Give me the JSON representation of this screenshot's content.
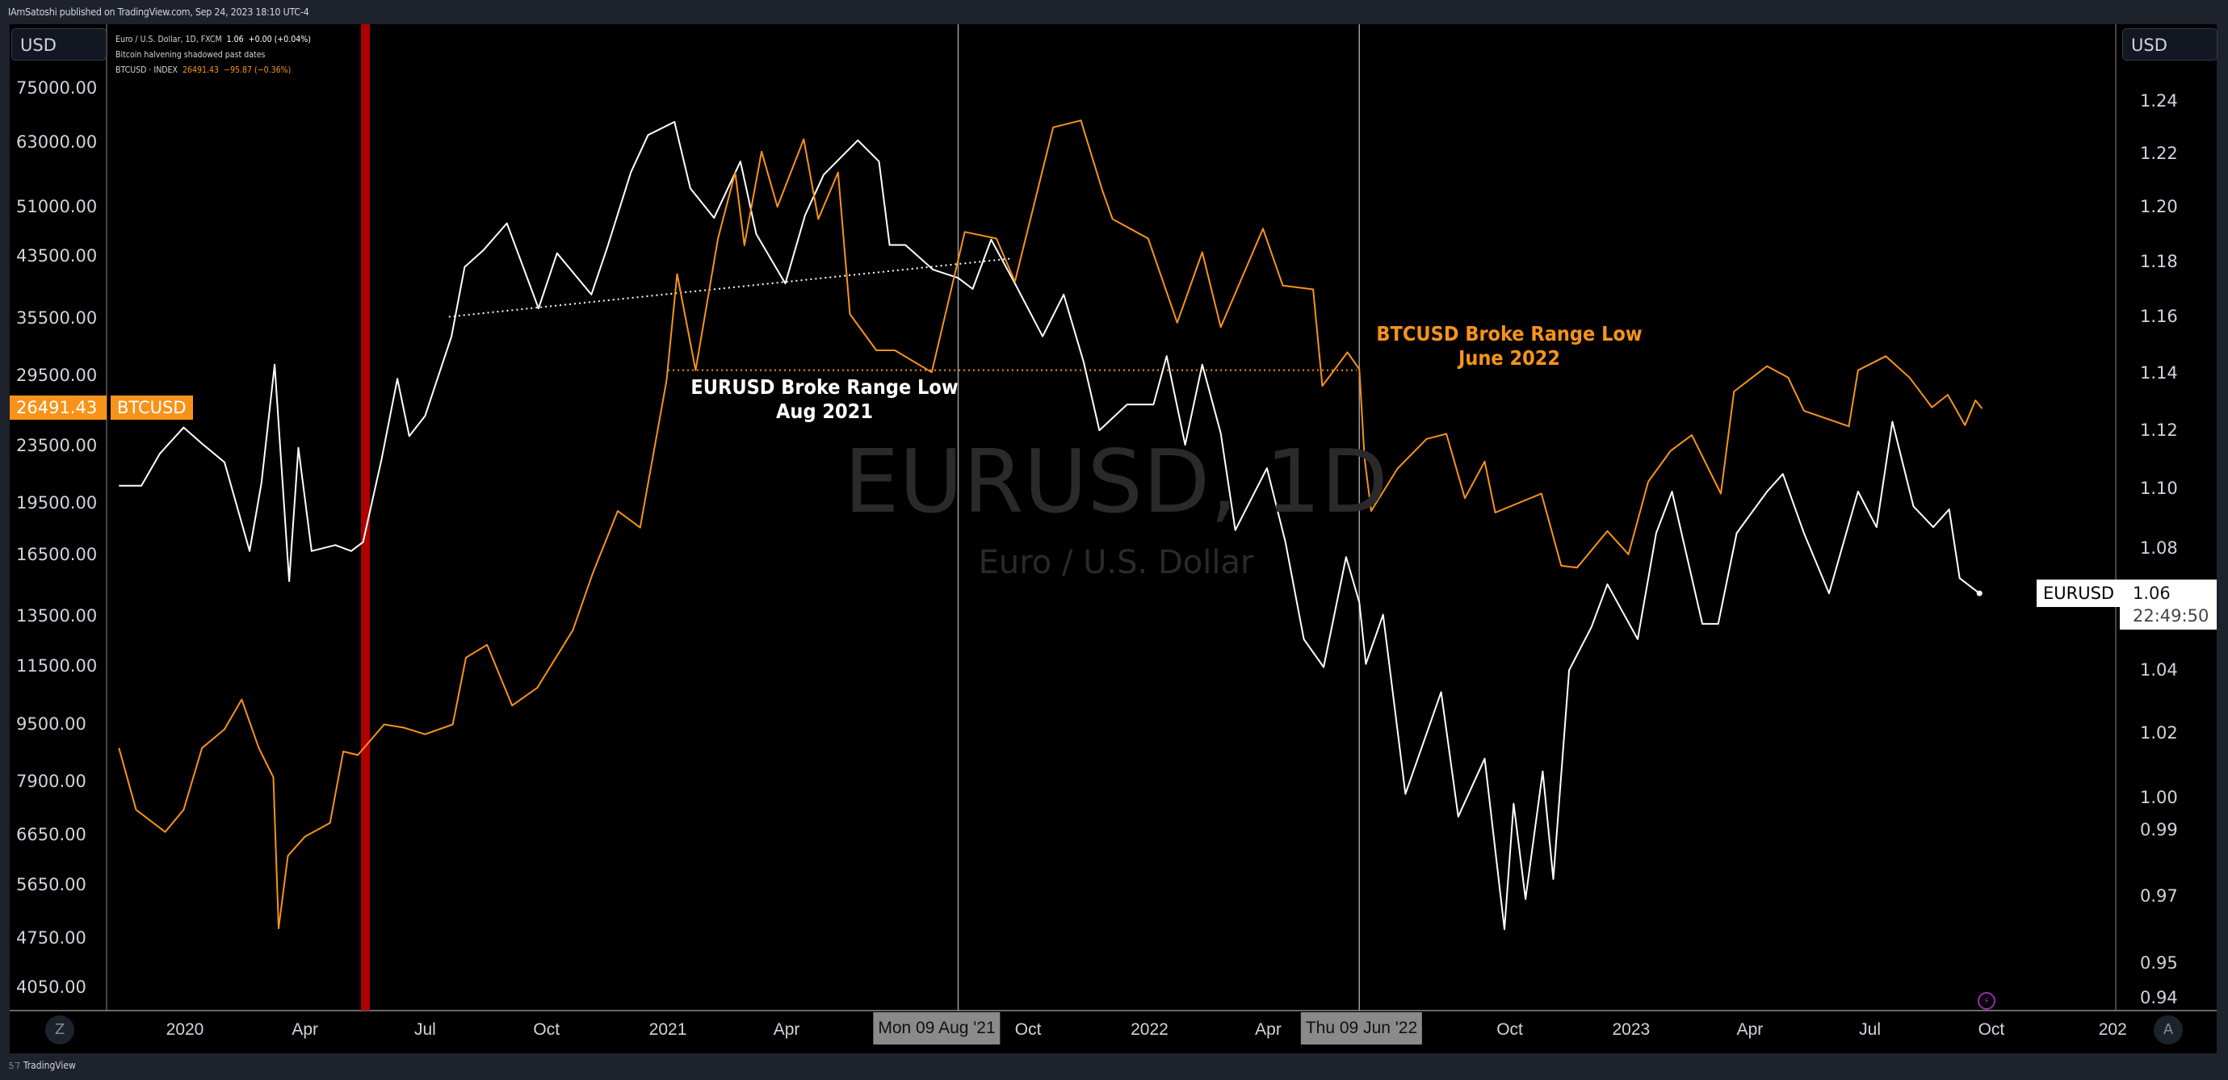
{
  "header": {
    "published": "IAmSatoshi published on TradingView.com, Sep 24, 2023 18:10 UTC-4"
  },
  "legend": {
    "main_title": "Euro / U.S. Dollar, 1D, FXCM",
    "main_price": "1.06",
    "main_change": "+0.00 (+0.04%)",
    "note_line": "Bitcoin halvening shadowed past dates",
    "btc_title": "BTCUSD · INDEX",
    "btc_price": "26491.43",
    "btc_change": "−95.87 (−0.36%)"
  },
  "currency_left": "USD",
  "currency_right": "USD",
  "watermark": {
    "symbol": "EURUSD, 1D",
    "description": "Euro / U.S. Dollar"
  },
  "annotations": {
    "eurusd": {
      "line1": "EURUSD Broke Range Low",
      "line2": "Aug 2021"
    },
    "btcusd": {
      "line1": "BTCUSD Broke Range Low",
      "line2": "June 2022"
    }
  },
  "price_tags": {
    "btc_price": "26491.43",
    "btc_name": "BTCUSD",
    "eur_name": "EURUSD",
    "eur_price": "1.06",
    "eur_countdown": "22:49:50"
  },
  "crosshair_labels": [
    "Mon 09 Aug '21",
    "Thu 09 Jun '22"
  ],
  "buttons": {
    "zoom": "Z",
    "auto": "A"
  },
  "footer": {
    "brand": "TradingView"
  },
  "colors": {
    "eurusd": "#ffffff",
    "btcusd": "#f7931a",
    "halving": "#b00000",
    "background": "#000000"
  },
  "icons": {
    "lightning": "lightning-icon",
    "logo": "tradingview-logo-icon"
  },
  "chart_data": {
    "type": "line",
    "x_axis": {
      "type": "date",
      "range": [
        "2019-11-08",
        "2024-01-20"
      ],
      "ticks": [
        [
          "2020-01-01",
          "2020"
        ],
        [
          "2020-04-01",
          "Apr"
        ],
        [
          "2020-07-01",
          "Jul"
        ],
        [
          "2020-10-01",
          "Oct"
        ],
        [
          "2021-01-01",
          "2021"
        ],
        [
          "2021-04-01",
          "Apr"
        ],
        [
          "2021-10-01",
          "Oct"
        ],
        [
          "2022-01-01",
          "2022"
        ],
        [
          "2022-04-01",
          "Apr"
        ],
        [
          "2022-10-01",
          "Oct"
        ],
        [
          "2023-01-01",
          "2023"
        ],
        [
          "2023-04-01",
          "Apr"
        ],
        [
          "2023-07-01",
          "Jul"
        ],
        [
          "2023-10-01",
          "Oct"
        ],
        [
          "2024-01-01",
          "202"
        ]
      ]
    },
    "left_axis": {
      "scale": "log",
      "range": [
        4050,
        75000
      ],
      "ticks": [
        "75000.00",
        "63000.00",
        "51000.00",
        "43500.00",
        "35500.00",
        "29500.00",
        "23500.00",
        "19500.00",
        "16500.00",
        "13500.00",
        "11500.00",
        "9500.00",
        "7900.00",
        "6650.00",
        "5650.00",
        "4750.00",
        "4050.00"
      ]
    },
    "right_axis": {
      "scale": "log",
      "range": [
        0.94,
        1.24
      ],
      "ticks": [
        "1.24",
        "1.22",
        "1.20",
        "1.18",
        "1.16",
        "1.14",
        "1.12",
        "1.10",
        "1.08",
        "1.04",
        "1.02",
        "1.00",
        "0.99",
        "0.97",
        "0.95",
        "0.94"
      ]
    },
    "grid": false,
    "series": [
      {
        "name": "EURUSD",
        "axis": "right",
        "color": "#ffffff",
        "points": [
          [
            "2019-11-12",
            1.101
          ],
          [
            "2019-11-29",
            1.101
          ],
          [
            "2019-12-13",
            1.112
          ],
          [
            "2019-12-31",
            1.121
          ],
          [
            "2020-01-15",
            1.115
          ],
          [
            "2020-01-31",
            1.109
          ],
          [
            "2020-02-19",
            1.079
          ],
          [
            "2020-02-28",
            1.102
          ],
          [
            "2020-03-09",
            1.143
          ],
          [
            "2020-03-20",
            1.069
          ],
          [
            "2020-03-27",
            1.114
          ],
          [
            "2020-04-06",
            1.079
          ],
          [
            "2020-04-24",
            1.081
          ],
          [
            "2020-05-06",
            1.079
          ],
          [
            "2020-05-15",
            1.082
          ],
          [
            "2020-05-29",
            1.11
          ],
          [
            "2020-06-10",
            1.138
          ],
          [
            "2020-06-19",
            1.118
          ],
          [
            "2020-07-01",
            1.125
          ],
          [
            "2020-07-21",
            1.153
          ],
          [
            "2020-07-31",
            1.178
          ],
          [
            "2020-08-14",
            1.184
          ],
          [
            "2020-09-01",
            1.194
          ],
          [
            "2020-09-25",
            1.163
          ],
          [
            "2020-10-09",
            1.183
          ],
          [
            "2020-11-04",
            1.168
          ],
          [
            "2020-11-16",
            1.185
          ],
          [
            "2020-12-04",
            1.213
          ],
          [
            "2020-12-17",
            1.227
          ],
          [
            "2021-01-06",
            1.232
          ],
          [
            "2021-01-18",
            1.207
          ],
          [
            "2021-02-05",
            1.196
          ],
          [
            "2021-02-25",
            1.217
          ],
          [
            "2021-03-09",
            1.19
          ],
          [
            "2021-03-31",
            1.172
          ],
          [
            "2021-04-15",
            1.197
          ],
          [
            "2021-04-29",
            1.212
          ],
          [
            "2021-05-25",
            1.225
          ],
          [
            "2021-06-10",
            1.217
          ],
          [
            "2021-06-18",
            1.186
          ],
          [
            "2021-06-30",
            1.186
          ],
          [
            "2021-07-21",
            1.177
          ],
          [
            "2021-08-09",
            1.174
          ],
          [
            "2021-08-20",
            1.17
          ],
          [
            "2021-09-03",
            1.188
          ],
          [
            "2021-09-21",
            1.172
          ],
          [
            "2021-10-12",
            1.153
          ],
          [
            "2021-10-28",
            1.168
          ],
          [
            "2021-11-12",
            1.144
          ],
          [
            "2021-11-24",
            1.12
          ],
          [
            "2021-12-15",
            1.129
          ],
          [
            "2022-01-04",
            1.129
          ],
          [
            "2022-01-14",
            1.146
          ],
          [
            "2022-01-28",
            1.115
          ],
          [
            "2022-02-10",
            1.143
          ],
          [
            "2022-02-24",
            1.119
          ],
          [
            "2022-03-07",
            1.086
          ],
          [
            "2022-03-31",
            1.107
          ],
          [
            "2022-04-14",
            1.082
          ],
          [
            "2022-04-28",
            1.05
          ],
          [
            "2022-05-13",
            1.041
          ],
          [
            "2022-05-30",
            1.077
          ],
          [
            "2022-06-09",
            1.062
          ],
          [
            "2022-06-14",
            1.042
          ],
          [
            "2022-06-27",
            1.058
          ],
          [
            "2022-07-14",
            1.001
          ],
          [
            "2022-08-10",
            1.033
          ],
          [
            "2022-08-23",
            0.994
          ],
          [
            "2022-09-12",
            1.012
          ],
          [
            "2022-09-27",
            0.96
          ],
          [
            "2022-10-04",
            0.998
          ],
          [
            "2022-10-13",
            0.969
          ],
          [
            "2022-10-26",
            1.008
          ],
          [
            "2022-11-03",
            0.975
          ],
          [
            "2022-11-15",
            1.04
          ],
          [
            "2022-12-02",
            1.054
          ],
          [
            "2022-12-14",
            1.068
          ],
          [
            "2023-01-06",
            1.05
          ],
          [
            "2023-01-20",
            1.085
          ],
          [
            "2023-02-01",
            1.099
          ],
          [
            "2023-02-24",
            1.055
          ],
          [
            "2023-03-08",
            1.055
          ],
          [
            "2023-03-22",
            1.085
          ],
          [
            "2023-04-14",
            1.099
          ],
          [
            "2023-04-26",
            1.105
          ],
          [
            "2023-05-12",
            1.085
          ],
          [
            "2023-05-31",
            1.065
          ],
          [
            "2023-06-22",
            1.099
          ],
          [
            "2023-07-06",
            1.087
          ],
          [
            "2023-07-18",
            1.123
          ],
          [
            "2023-08-03",
            1.094
          ],
          [
            "2023-08-18",
            1.087
          ],
          [
            "2023-08-30",
            1.093
          ],
          [
            "2023-09-07",
            1.07
          ],
          [
            "2023-09-22",
            1.065
          ]
        ]
      },
      {
        "name": "BTCUSD",
        "axis": "left",
        "color": "#f7931a",
        "points": [
          [
            "2019-11-12",
            8800
          ],
          [
            "2019-11-25",
            7200
          ],
          [
            "2019-12-17",
            6700
          ],
          [
            "2019-12-31",
            7200
          ],
          [
            "2020-01-14",
            8800
          ],
          [
            "2020-01-31",
            9350
          ],
          [
            "2020-02-13",
            10300
          ],
          [
            "2020-02-26",
            8800
          ],
          [
            "2020-03-08",
            8000
          ],
          [
            "2020-03-12",
            4900
          ],
          [
            "2020-03-19",
            6200
          ],
          [
            "2020-04-01",
            6600
          ],
          [
            "2020-04-20",
            6900
          ],
          [
            "2020-04-30",
            8700
          ],
          [
            "2020-05-11",
            8600
          ],
          [
            "2020-05-31",
            9500
          ],
          [
            "2020-06-15",
            9400
          ],
          [
            "2020-07-01",
            9200
          ],
          [
            "2020-07-22",
            9500
          ],
          [
            "2020-08-01",
            11800
          ],
          [
            "2020-08-17",
            12300
          ],
          [
            "2020-09-05",
            10100
          ],
          [
            "2020-09-24",
            10700
          ],
          [
            "2020-10-21",
            12900
          ],
          [
            "2020-11-05",
            15500
          ],
          [
            "2020-11-24",
            19000
          ],
          [
            "2020-12-11",
            18000
          ],
          [
            "2020-12-31",
            29000
          ],
          [
            "2021-01-08",
            41000
          ],
          [
            "2021-01-22",
            30000
          ],
          [
            "2021-02-08",
            46000
          ],
          [
            "2021-02-21",
            57000
          ],
          [
            "2021-02-28",
            45000
          ],
          [
            "2021-03-13",
            61000
          ],
          [
            "2021-03-25",
            51000
          ],
          [
            "2021-04-14",
            63500
          ],
          [
            "2021-04-25",
            49000
          ],
          [
            "2021-05-10",
            57000
          ],
          [
            "2021-05-19",
            36000
          ],
          [
            "2021-06-08",
            32000
          ],
          [
            "2021-06-22",
            32000
          ],
          [
            "2021-07-20",
            29800
          ],
          [
            "2021-08-14",
            47000
          ],
          [
            "2021-09-07",
            46000
          ],
          [
            "2021-09-21",
            40000
          ],
          [
            "2021-10-20",
            66000
          ],
          [
            "2021-11-10",
            67500
          ],
          [
            "2021-11-26",
            54000
          ],
          [
            "2021-12-04",
            49000
          ],
          [
            "2021-12-31",
            46000
          ],
          [
            "2022-01-22",
            35000
          ],
          [
            "2022-02-10",
            44000
          ],
          [
            "2022-02-24",
            34500
          ],
          [
            "2022-03-28",
            47500
          ],
          [
            "2022-04-12",
            39500
          ],
          [
            "2022-05-05",
            39000
          ],
          [
            "2022-05-12",
            28500
          ],
          [
            "2022-05-31",
            31800
          ],
          [
            "2022-06-09",
            30100
          ],
          [
            "2022-06-13",
            22500
          ],
          [
            "2022-06-18",
            19000
          ],
          [
            "2022-07-08",
            21800
          ],
          [
            "2022-07-30",
            24000
          ],
          [
            "2022-08-14",
            24400
          ],
          [
            "2022-08-28",
            19800
          ],
          [
            "2022-09-12",
            22300
          ],
          [
            "2022-09-20",
            18900
          ],
          [
            "2022-10-25",
            20100
          ],
          [
            "2022-11-09",
            15900
          ],
          [
            "2022-11-21",
            15800
          ],
          [
            "2022-12-14",
            17800
          ],
          [
            "2022-12-30",
            16500
          ],
          [
            "2023-01-14",
            20900
          ],
          [
            "2023-01-31",
            23100
          ],
          [
            "2023-02-16",
            24300
          ],
          [
            "2023-03-10",
            20100
          ],
          [
            "2023-03-20",
            28000
          ],
          [
            "2023-04-14",
            30400
          ],
          [
            "2023-04-30",
            29300
          ],
          [
            "2023-05-12",
            26300
          ],
          [
            "2023-06-15",
            25000
          ],
          [
            "2023-06-22",
            30000
          ],
          [
            "2023-07-13",
            31400
          ],
          [
            "2023-07-31",
            29300
          ],
          [
            "2023-08-17",
            26600
          ],
          [
            "2023-08-29",
            27700
          ],
          [
            "2023-09-11",
            25100
          ],
          [
            "2023-09-19",
            27200
          ],
          [
            "2023-09-24",
            26491.43
          ]
        ]
      }
    ],
    "trendlines": [
      {
        "axis": "right",
        "color": "#ffffff",
        "style": "dotted",
        "from": [
          "2020-07-19",
          1.16
        ],
        "to": [
          "2021-09-17",
          1.181
        ]
      },
      {
        "axis": "left",
        "color": "#f7931a",
        "style": "dotted",
        "from": [
          "2021-01-01",
          30000
        ],
        "to": [
          "2022-06-07",
          30000
        ]
      }
    ],
    "vertical_markers": [
      {
        "date": "2020-05-11",
        "type": "halving-band",
        "color": "#b00000"
      },
      {
        "date": "2021-08-09",
        "type": "crosshair"
      },
      {
        "date": "2022-06-09",
        "type": "crosshair"
      }
    ]
  }
}
